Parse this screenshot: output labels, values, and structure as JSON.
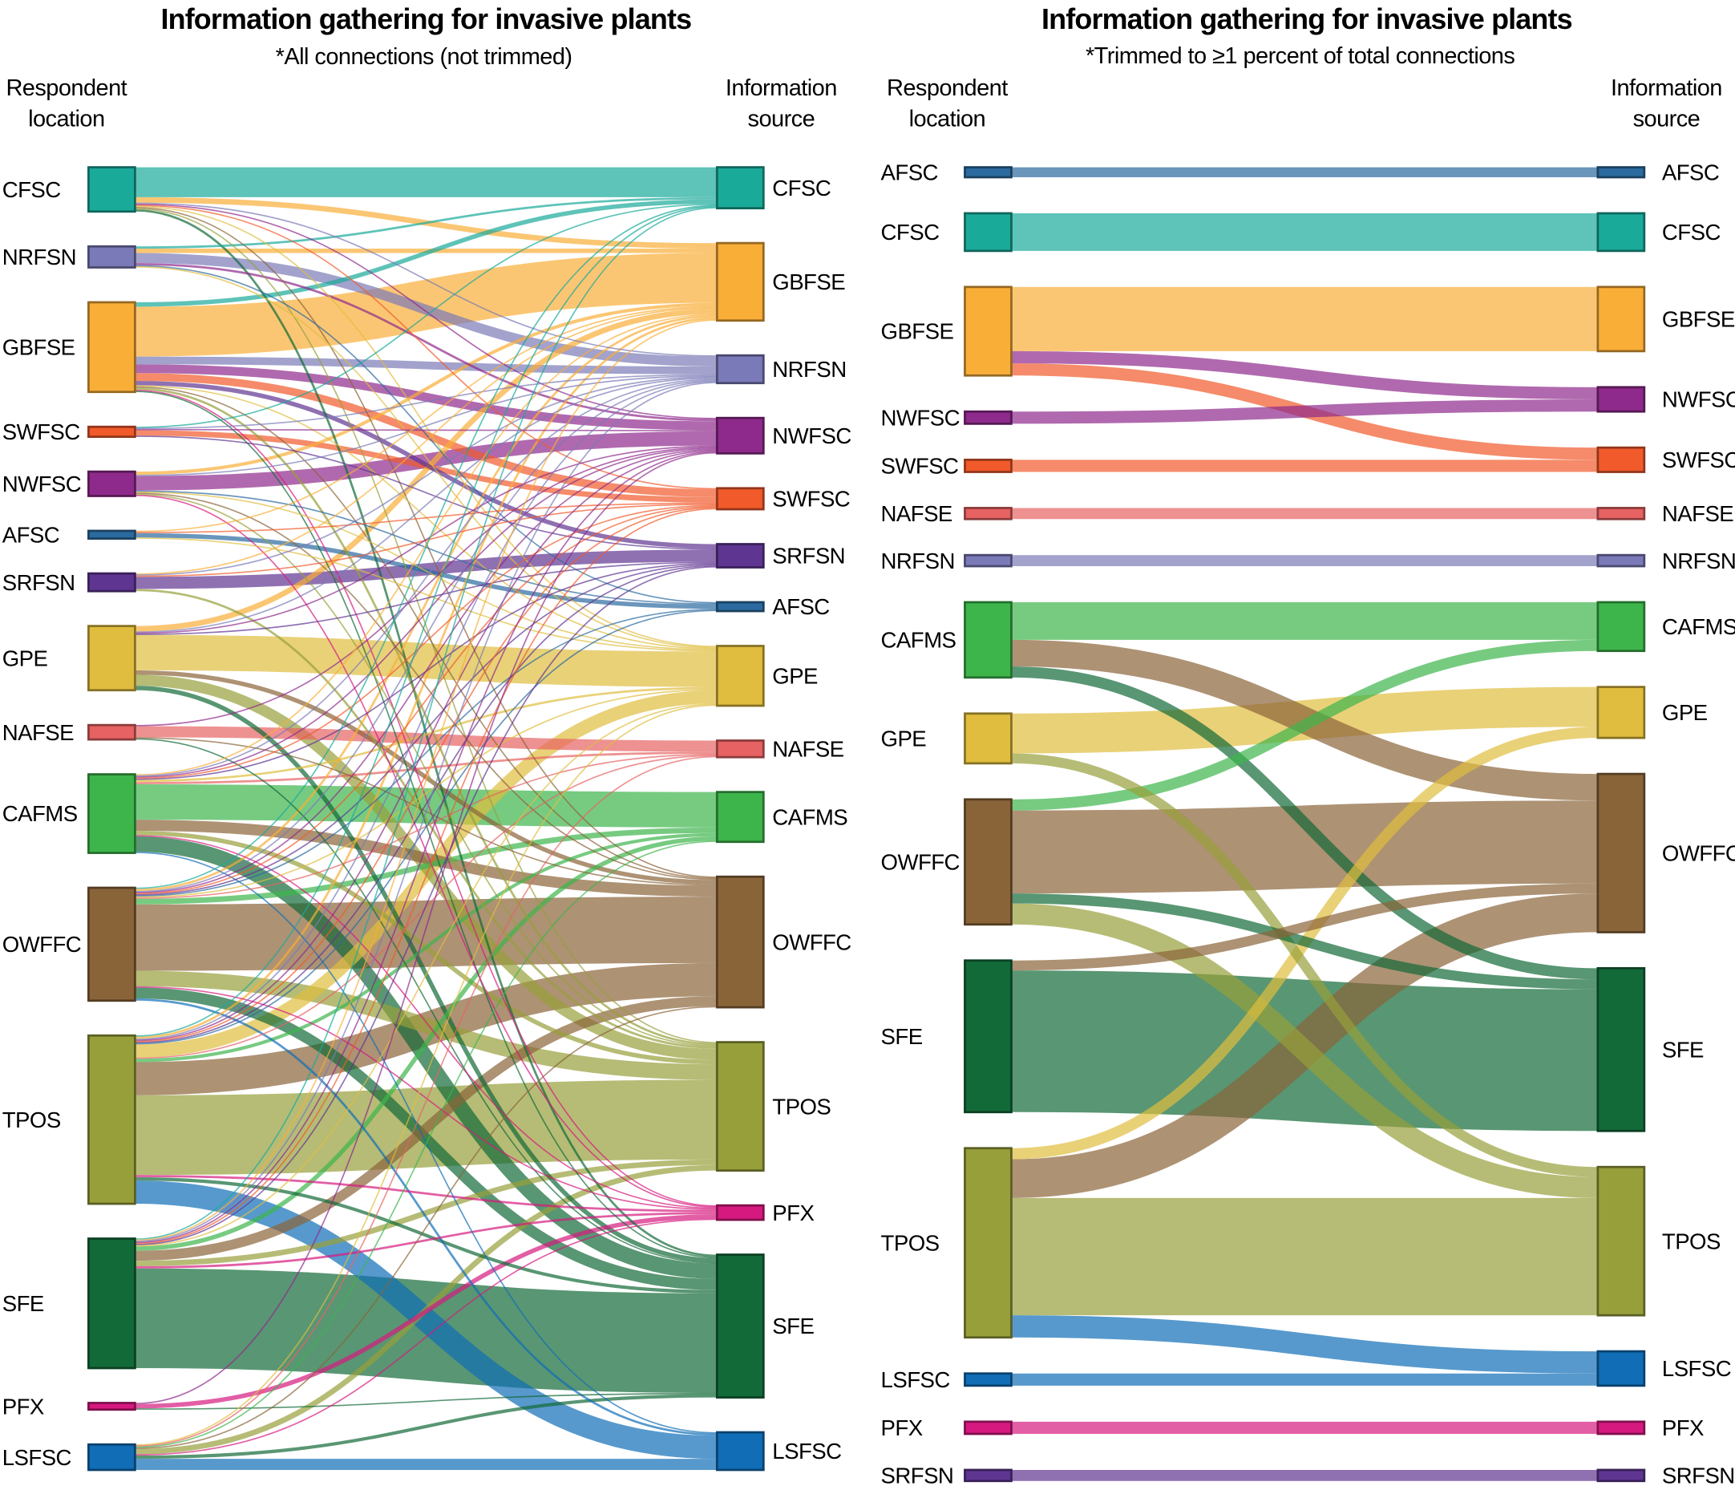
{
  "colors": {
    "CFSC": "#1aaa9a",
    "NRFSN": "#7a7ab8",
    "GBFSE": "#f9ae38",
    "SWFSC": "#f15a2b",
    "NWFSC": "#8e2a8b",
    "AFSC": "#2b6a9f",
    "SRFSN": "#5f3592",
    "GPE": "#e0bd3e",
    "NAFSE": "#e76262",
    "CAFMS": "#3db54b",
    "OWFFC": "#8a6439",
    "TPOS": "#979f3b",
    "SFE": "#126a38",
    "PFX": "#d6197f",
    "LSFSC": "#106db6"
  },
  "charts": [
    {
      "title": "Information gathering for invasive plants",
      "subtitle": "*All connections (not trimmed)",
      "left_header": [
        "Respondent",
        "location"
      ],
      "right_header": [
        "Information",
        "source"
      ],
      "left_nodes": [
        "CFSC",
        "NRFSN",
        "GBFSE",
        "SWFSC",
        "NWFSC",
        "AFSC",
        "SRFSN",
        "GPE",
        "NAFSE",
        "CAFMS",
        "OWFFC",
        "TPOS",
        "SFE",
        "PFX",
        "LSFSC"
      ],
      "right_nodes": [
        "CFSC",
        "GBFSE",
        "NRFSN",
        "NWFSC",
        "SWFSC",
        "SRFSN",
        "AFSC",
        "GPE",
        "NAFSE",
        "CAFMS",
        "OWFFC",
        "TPOS",
        "PFX",
        "SFE",
        "LSFSC"
      ],
      "flows": [
        [
          "CFSC",
          "CFSC",
          27
        ],
        [
          "CFSC",
          "GBFSE",
          5
        ],
        [
          "CFSC",
          "NRFSN",
          1
        ],
        [
          "CFSC",
          "NWFSC",
          1
        ],
        [
          "CFSC",
          "SWFSC",
          1
        ],
        [
          "CFSC",
          "GPE",
          1
        ],
        [
          "CFSC",
          "OWFFC",
          1
        ],
        [
          "CFSC",
          "TPOS",
          1
        ],
        [
          "CFSC",
          "SFE",
          2
        ],
        [
          "NRFSN",
          "CFSC",
          2
        ],
        [
          "NRFSN",
          "GBFSE",
          4
        ],
        [
          "NRFSN",
          "NRFSN",
          9
        ],
        [
          "NRFSN",
          "NWFSC",
          2
        ],
        [
          "NRFSN",
          "AFSC",
          1
        ],
        [
          "NRFSN",
          "GPE",
          1
        ],
        [
          "GBFSE",
          "CFSC",
          4
        ],
        [
          "GBFSE",
          "GBFSE",
          45
        ],
        [
          "GBFSE",
          "NRFSN",
          7
        ],
        [
          "GBFSE",
          "NWFSC",
          8
        ],
        [
          "GBFSE",
          "SWFSC",
          7
        ],
        [
          "GBFSE",
          "SRFSN",
          4
        ],
        [
          "GBFSE",
          "GPE",
          1
        ],
        [
          "GBFSE",
          "OWFFC",
          1
        ],
        [
          "GBFSE",
          "TPOS",
          2
        ],
        [
          "GBFSE",
          "PFX",
          1
        ],
        [
          "GBFSE",
          "SFE",
          1
        ],
        [
          "SWFSC",
          "CFSC",
          1
        ],
        [
          "SWFSC",
          "NRFSN",
          1
        ],
        [
          "SWFSC",
          "NWFSC",
          1
        ],
        [
          "SWFSC",
          "SWFSC",
          5
        ],
        [
          "SWFSC",
          "SRFSN",
          1
        ],
        [
          "NWFSC",
          "GBFSE",
          3
        ],
        [
          "NWFSC",
          "NRFSN",
          1
        ],
        [
          "NWFSC",
          "NWFSC",
          13
        ],
        [
          "NWFSC",
          "AFSC",
          1
        ],
        [
          "NWFSC",
          "GPE",
          1
        ],
        [
          "NWFSC",
          "OWFFC",
          1
        ],
        [
          "NWFSC",
          "TPOS",
          1
        ],
        [
          "NWFSC",
          "PFX",
          1
        ],
        [
          "AFSC",
          "GBFSE",
          1
        ],
        [
          "AFSC",
          "SWFSC",
          1
        ],
        [
          "AFSC",
          "AFSC",
          4
        ],
        [
          "AFSC",
          "GPE",
          1
        ],
        [
          "SRFSN",
          "GBFSE",
          1
        ],
        [
          "SRFSN",
          "NRFSN",
          1
        ],
        [
          "SRFSN",
          "SWFSC",
          1
        ],
        [
          "SRFSN",
          "SRFSN",
          11
        ],
        [
          "SRFSN",
          "TPOS",
          2
        ],
        [
          "GPE",
          "GBFSE",
          5
        ],
        [
          "GPE",
          "NRFSN",
          1
        ],
        [
          "GPE",
          "NWFSC",
          1
        ],
        [
          "GPE",
          "SRFSN",
          1
        ],
        [
          "GPE",
          "GPE",
          32
        ],
        [
          "GPE",
          "OWFFC",
          4
        ],
        [
          "GPE",
          "TPOS",
          10
        ],
        [
          "GPE",
          "SFE",
          4
        ],
        [
          "NAFSE",
          "NWFSC",
          1
        ],
        [
          "NAFSE",
          "NAFSE",
          10
        ],
        [
          "NAFSE",
          "OWFFC",
          1
        ],
        [
          "NAFSE",
          "SFE",
          1
        ],
        [
          "CAFMS",
          "GBFSE",
          1
        ],
        [
          "CAFMS",
          "NRFSN",
          1
        ],
        [
          "CAFMS",
          "NWFSC",
          1
        ],
        [
          "CAFMS",
          "SWFSC",
          1
        ],
        [
          "CAFMS",
          "SRFSN",
          1
        ],
        [
          "CAFMS",
          "GPE",
          2
        ],
        [
          "CAFMS",
          "NAFSE",
          2
        ],
        [
          "CAFMS",
          "CAFMS",
          32
        ],
        [
          "CAFMS",
          "OWFFC",
          10
        ],
        [
          "CAFMS",
          "TPOS",
          4
        ],
        [
          "CAFMS",
          "PFX",
          1
        ],
        [
          "CAFMS",
          "SFE",
          14
        ],
        [
          "CAFMS",
          "LSFSC",
          1
        ],
        [
          "OWFFC",
          "CFSC",
          1
        ],
        [
          "OWFFC",
          "GBFSE",
          2
        ],
        [
          "OWFFC",
          "NRFSN",
          1
        ],
        [
          "OWFFC",
          "NWFSC",
          1
        ],
        [
          "OWFFC",
          "SWFSC",
          1
        ],
        [
          "OWFFC",
          "SRFSN",
          1
        ],
        [
          "OWFFC",
          "AFSC",
          1
        ],
        [
          "OWFFC",
          "GPE",
          1
        ],
        [
          "OWFFC",
          "NAFSE",
          1
        ],
        [
          "OWFFC",
          "CAFMS",
          5
        ],
        [
          "OWFFC",
          "OWFFC",
          60
        ],
        [
          "OWFFC",
          "TPOS",
          14
        ],
        [
          "OWFFC",
          "PFX",
          1
        ],
        [
          "OWFFC",
          "SFE",
          10
        ],
        [
          "OWFFC",
          "LSFSC",
          2
        ],
        [
          "TPOS",
          "CFSC",
          1
        ],
        [
          "TPOS",
          "GBFSE",
          2
        ],
        [
          "TPOS",
          "NRFSN",
          1
        ],
        [
          "TPOS",
          "NWFSC",
          1
        ],
        [
          "TPOS",
          "SWFSC",
          1
        ],
        [
          "TPOS",
          "SRFSN",
          1
        ],
        [
          "TPOS",
          "AFSC",
          1
        ],
        [
          "TPOS",
          "GPE",
          12
        ],
        [
          "TPOS",
          "NAFSE",
          1
        ],
        [
          "TPOS",
          "CAFMS",
          3
        ],
        [
          "TPOS",
          "OWFFC",
          30
        ],
        [
          "TPOS",
          "TPOS",
          72
        ],
        [
          "TPOS",
          "PFX",
          2
        ],
        [
          "TPOS",
          "SFE",
          3
        ],
        [
          "TPOS",
          "LSFSC",
          21
        ],
        [
          "SFE",
          "CFSC",
          1
        ],
        [
          "SFE",
          "GBFSE",
          1
        ],
        [
          "SFE",
          "NRFSN",
          1
        ],
        [
          "SFE",
          "NWFSC",
          1
        ],
        [
          "SFE",
          "SWFSC",
          1
        ],
        [
          "SFE",
          "SRFSN",
          1
        ],
        [
          "SFE",
          "GPE",
          1
        ],
        [
          "SFE",
          "CAFMS",
          4
        ],
        [
          "SFE",
          "OWFFC",
          9
        ],
        [
          "SFE",
          "TPOS",
          5
        ],
        [
          "SFE",
          "PFX",
          2
        ],
        [
          "SFE",
          "SFE",
          90
        ],
        [
          "PFX",
          "NWFSC",
          1
        ],
        [
          "PFX",
          "PFX",
          4
        ],
        [
          "PFX",
          "SFE",
          1
        ],
        [
          "LSFSC",
          "GPE",
          1
        ],
        [
          "LSFSC",
          "NAFSE",
          1
        ],
        [
          "LSFSC",
          "CAFMS",
          1
        ],
        [
          "LSFSC",
          "OWFFC",
          1
        ],
        [
          "LSFSC",
          "TPOS",
          5
        ],
        [
          "LSFSC",
          "PFX",
          1
        ],
        [
          "LSFSC",
          "SFE",
          3
        ],
        [
          "LSFSC",
          "LSFSC",
          10
        ]
      ]
    },
    {
      "title": "Information gathering for invasive plants",
      "subtitle": "*Trimmed to ≥1 percent of total connections",
      "left_header": [
        "Respondent",
        "location"
      ],
      "right_header": [
        "Information",
        "source"
      ],
      "left_nodes": [
        "AFSC",
        "CFSC",
        "GBFSE",
        "NWFSC",
        "SWFSC",
        "NAFSE",
        "NRFSN",
        "CAFMS",
        "GPE",
        "OWFFC",
        "SFE",
        "TPOS",
        "LSFSC",
        "PFX",
        "SRFSN"
      ],
      "right_nodes": [
        "AFSC",
        "CFSC",
        "GBFSE",
        "NWFSC",
        "SWFSC",
        "NAFSE",
        "NRFSN",
        "CAFMS",
        "GPE",
        "OWFFC",
        "SFE",
        "TPOS",
        "LSFSC",
        "PFX",
        "SRFSN"
      ],
      "flows": [
        [
          "AFSC",
          "AFSC",
          9
        ],
        [
          "CFSC",
          "CFSC",
          34
        ],
        [
          "GBFSE",
          "GBFSE",
          58
        ],
        [
          "GBFSE",
          "NWFSC",
          11
        ],
        [
          "GBFSE",
          "SWFSC",
          11
        ],
        [
          "NWFSC",
          "NWFSC",
          11
        ],
        [
          "SWFSC",
          "SWFSC",
          11
        ],
        [
          "NAFSE",
          "NAFSE",
          10
        ],
        [
          "NRFSN",
          "NRFSN",
          10
        ],
        [
          "CAFMS",
          "CAFMS",
          34
        ],
        [
          "CAFMS",
          "OWFFC",
          24
        ],
        [
          "CAFMS",
          "SFE",
          10
        ],
        [
          "GPE",
          "GPE",
          36
        ],
        [
          "GPE",
          "TPOS",
          9
        ],
        [
          "OWFFC",
          "CAFMS",
          10
        ],
        [
          "OWFFC",
          "OWFFC",
          75
        ],
        [
          "OWFFC",
          "SFE",
          9
        ],
        [
          "OWFFC",
          "TPOS",
          19
        ],
        [
          "SFE",
          "OWFFC",
          9
        ],
        [
          "SFE",
          "SFE",
          128
        ],
        [
          "TPOS",
          "GPE",
          10
        ],
        [
          "TPOS",
          "OWFFC",
          35
        ],
        [
          "TPOS",
          "TPOS",
          106
        ],
        [
          "TPOS",
          "LSFSC",
          20
        ],
        [
          "LSFSC",
          "LSFSC",
          11
        ],
        [
          "PFX",
          "PFX",
          11
        ],
        [
          "SRFSN",
          "SRFSN",
          10
        ]
      ]
    }
  ]
}
